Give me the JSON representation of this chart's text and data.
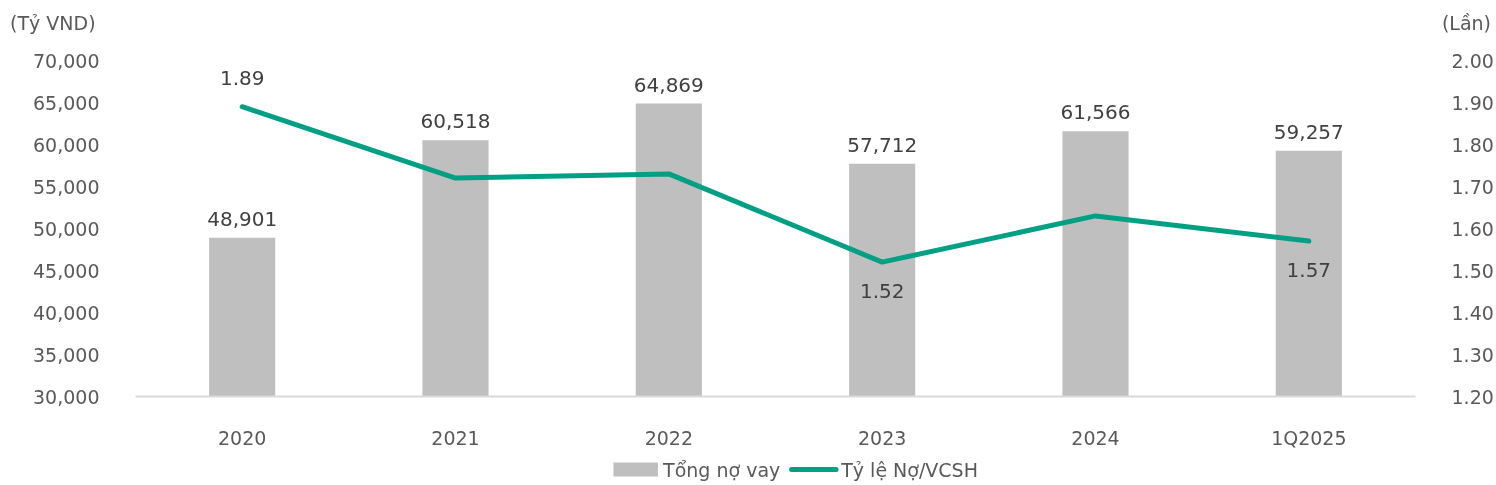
{
  "chart_data": {
    "type": "bar",
    "ylabel": "(Tỷ VND)",
    "y2label": "(Lần)",
    "legend": "bottom",
    "categories": [
      "2020",
      "2021",
      "2022",
      "2023",
      "2024",
      "1Q2025"
    ],
    "ylim": [
      30000,
      70000
    ],
    "yticks": [
      {
        "value": 30000,
        "label": "30,000"
      },
      {
        "value": 35000,
        "label": "35,000"
      },
      {
        "value": 40000,
        "label": "40,000"
      },
      {
        "value": 45000,
        "label": "45,000"
      },
      {
        "value": 50000,
        "label": "50,000"
      },
      {
        "value": 55000,
        "label": "55,000"
      },
      {
        "value": 60000,
        "label": "60,000"
      },
      {
        "value": 65000,
        "label": "65,000"
      },
      {
        "value": 70000,
        "label": "70,000"
      }
    ],
    "y2lim": [
      1.2,
      2.0
    ],
    "y2ticks": [
      {
        "value": 1.2,
        "label": "1.20"
      },
      {
        "value": 1.3,
        "label": "1.30"
      },
      {
        "value": 1.4,
        "label": "1.40"
      },
      {
        "value": 1.5,
        "label": "1.50"
      },
      {
        "value": 1.6,
        "label": "1.60"
      },
      {
        "value": 1.7,
        "label": "1.70"
      },
      {
        "value": 1.8,
        "label": "1.80"
      },
      {
        "value": 1.9,
        "label": "1.90"
      },
      {
        "value": 2.0,
        "label": "2.00"
      }
    ],
    "series": [
      {
        "name": "Tổng nợ vay",
        "color": "#bfbfbf",
        "values": [
          48901,
          60518,
          64869,
          57712,
          61566,
          59257
        ],
        "value_labels": [
          "48,901",
          "60,518",
          "64,869",
          "57,712",
          "61,566",
          "59,257"
        ]
      },
      {
        "name": "Tỷ lệ Nợ/VCSH",
        "type": "line",
        "axis": "y2",
        "color": "#00a085",
        "values": [
          1.89,
          1.72,
          1.73,
          1.52,
          1.63,
          1.57
        ],
        "value_labels": [
          "1.89",
          null,
          null,
          "1.52",
          null,
          "1.57"
        ]
      }
    ]
  }
}
